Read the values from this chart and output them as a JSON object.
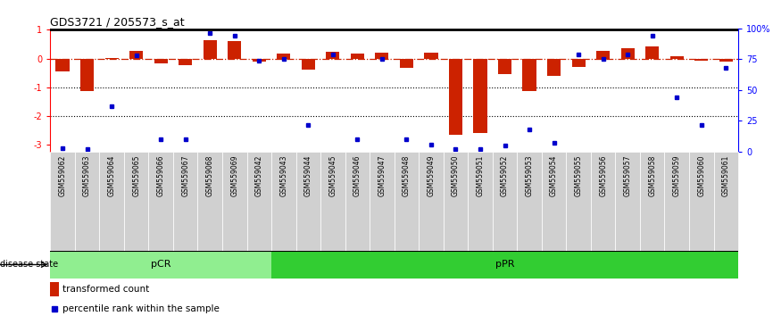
{
  "title": "GDS3721 / 205573_s_at",
  "samples": [
    "GSM559062",
    "GSM559063",
    "GSM559064",
    "GSM559065",
    "GSM559066",
    "GSM559067",
    "GSM559068",
    "GSM559069",
    "GSM559042",
    "GSM559043",
    "GSM559044",
    "GSM559045",
    "GSM559046",
    "GSM559047",
    "GSM559048",
    "GSM559049",
    "GSM559050",
    "GSM559051",
    "GSM559052",
    "GSM559053",
    "GSM559054",
    "GSM559055",
    "GSM559056",
    "GSM559057",
    "GSM559058",
    "GSM559059",
    "GSM559060",
    "GSM559061"
  ],
  "transformed_count": [
    -0.45,
    -1.15,
    0.03,
    0.28,
    -0.18,
    -0.22,
    0.65,
    0.6,
    -0.12,
    0.18,
    -0.38,
    0.24,
    0.18,
    0.22,
    -0.32,
    0.22,
    -2.65,
    -2.6,
    -0.55,
    -1.12,
    -0.6,
    -0.3,
    0.28,
    0.35,
    0.42,
    0.08,
    -0.08,
    -0.12
  ],
  "percentile_rank_pct": [
    3,
    2,
    37,
    78,
    10,
    10,
    96,
    94,
    74,
    75,
    22,
    79,
    10,
    75,
    10,
    6,
    2,
    2,
    5,
    18,
    7,
    79,
    75,
    79,
    94,
    44,
    22,
    68
  ],
  "pCR_count": 9,
  "bar_color": "#cc2200",
  "dot_color": "#0000cc",
  "zero_line_color": "#cc2200",
  "pCR_bg": "#90ee90",
  "pPR_bg": "#32cd32",
  "label_bg": "#d0d0d0",
  "ylim_left": [
    -3.25,
    1.05
  ],
  "yticks_left": [
    1,
    0,
    -1,
    -2,
    -3
  ],
  "ytick_labels_left": [
    "1",
    "0",
    "-1",
    "-2",
    "-3"
  ],
  "ytick_labels_right": [
    "100%",
    "75",
    "50",
    "25",
    "0"
  ],
  "yticks_right_pct": [
    100,
    75,
    50,
    25,
    0
  ]
}
